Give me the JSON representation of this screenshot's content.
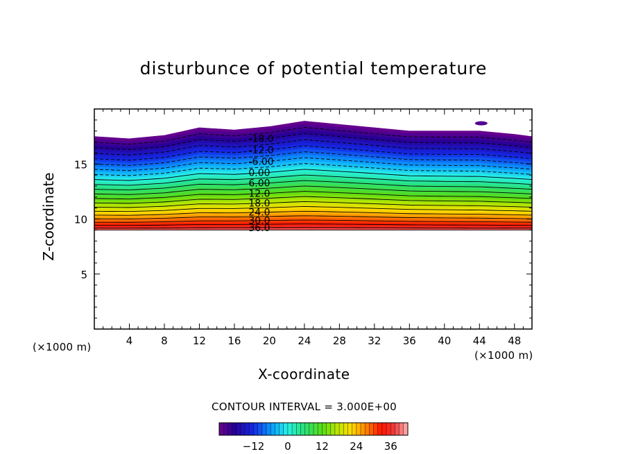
{
  "chart_data": {
    "type": "contour",
    "title": "disturbunce of potential temperature",
    "xlabel": "X-coordinate",
    "ylabel": "Z-coordinate",
    "x_unit": "(×1000 m)",
    "y_unit": "(×1000 m)",
    "xlim": [
      0,
      50
    ],
    "ylim": [
      0,
      20
    ],
    "xticks": [
      4,
      8,
      12,
      16,
      20,
      24,
      28,
      32,
      36,
      40,
      44,
      48
    ],
    "yticks": [
      5,
      10,
      15
    ],
    "contour_interval_label": "CONTOUR INTERVAL = 3.000E+00",
    "contour_interval": 3.0,
    "colorbar": {
      "min": -24,
      "max": 42,
      "ticks": [
        -12,
        0,
        12,
        24,
        36
      ],
      "colormap": "rainbow (purple-blue-cyan-green-yellow-orange-red-pink)"
    },
    "field": {
      "bottom_boundary_z": 9.0,
      "min_value_top": -24,
      "max_value_bottom": 39,
      "note_negative_contours_dashed": true
    },
    "contour_labels": [
      {
        "text": "-18.0",
        "value": -18
      },
      {
        "text": "-12.0",
        "value": -12
      },
      {
        "text": "-6.00",
        "value": -6
      },
      {
        "text": "0.00",
        "value": 0
      },
      {
        "text": "6.00",
        "value": 6
      },
      {
        "text": "12.0",
        "value": 12
      },
      {
        "text": "18.0",
        "value": 18
      },
      {
        "text": "24.0",
        "value": 24
      },
      {
        "text": "30.0",
        "value": 30
      },
      {
        "text": "36.0",
        "value": 36
      }
    ],
    "top_boundary": [
      {
        "x": 0,
        "z": 17.5
      },
      {
        "x": 4,
        "z": 17.3
      },
      {
        "x": 8,
        "z": 17.6
      },
      {
        "x": 12,
        "z": 18.3
      },
      {
        "x": 16,
        "z": 18.1
      },
      {
        "x": 20,
        "z": 18.4
      },
      {
        "x": 24,
        "z": 18.9
      },
      {
        "x": 28,
        "z": 18.6
      },
      {
        "x": 32,
        "z": 18.3
      },
      {
        "x": 36,
        "z": 18.0
      },
      {
        "x": 40,
        "z": 18.0
      },
      {
        "x": 44,
        "z": 18.0
      },
      {
        "x": 48,
        "z": 17.7
      },
      {
        "x": 50,
        "z": 17.5
      }
    ]
  }
}
